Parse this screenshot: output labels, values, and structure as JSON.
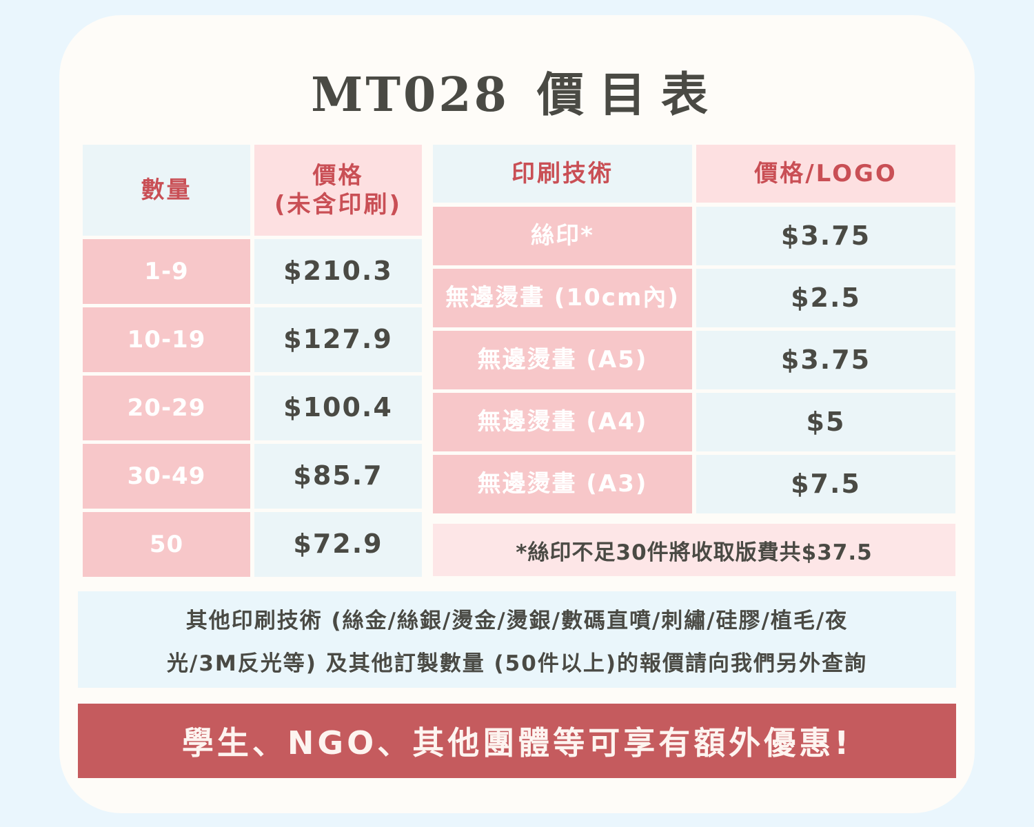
{
  "title": {
    "code": "MT028",
    "label": "價目表"
  },
  "left_table": {
    "header_qty": "數量",
    "header_price_line1": "價格",
    "header_price_line2": "(未含印刷)",
    "rows": [
      {
        "qty": "1-9",
        "price": "$210.3"
      },
      {
        "qty": "10-19",
        "price": "$127.9"
      },
      {
        "qty": "20-29",
        "price": "$100.4"
      },
      {
        "qty": "30-49",
        "price": "$85.7"
      },
      {
        "qty": "50",
        "price": "$72.9"
      }
    ]
  },
  "right_table": {
    "header_tech": "印刷技術",
    "header_price": "價格/LOGO",
    "rows": [
      {
        "tech": "絲印*",
        "price": "$3.75"
      },
      {
        "tech": "無邊燙畫 (10cm內)",
        "price": "$2.5"
      },
      {
        "tech": "無邊燙畫 (A5)",
        "price": "$3.75"
      },
      {
        "tech": "無邊燙畫 (A4)",
        "price": "$5"
      },
      {
        "tech": "無邊燙畫 (A3)",
        "price": "$7.5"
      }
    ],
    "note": "*絲印不足30件將收取版費共$37.5"
  },
  "other_info": {
    "line1": "其他印刷技術 (絲金/絲銀/燙金/燙銀/數碼直噴/刺繡/硅膠/植毛/夜",
    "line2": "光/3M反光等) 及其他訂製數量 (50件以上)的報價請向我們另外查詢"
  },
  "banner": "學生、NGO、其他團體等可享有額外優惠!",
  "colors": {
    "background": "#eaf6fd",
    "card": "#fefcf8",
    "pink_cell": "#f7c7c9",
    "light_cell": "#ebf5f8",
    "accent_red": "#c94f55",
    "banner": "#c55b5e",
    "text_dark": "#4a4a44"
  }
}
